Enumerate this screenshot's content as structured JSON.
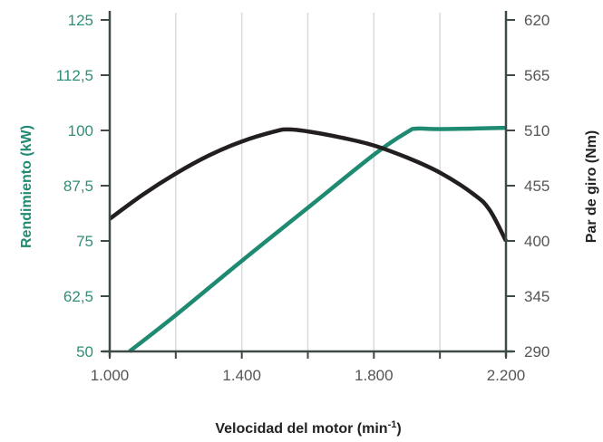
{
  "chart_data": {
    "type": "line",
    "xlabel": "Velocidad del motor (min",
    "xlabel_sup": "-1",
    "xlabel_close": ")",
    "ylabel_left": "Rendimiento (kW)",
    "ylabel_right": "Par de giro (Nm)",
    "xlim": [
      1000,
      2200
    ],
    "ylim_left": [
      50,
      125
    ],
    "ylim_right": [
      290,
      620
    ],
    "x_ticks": [
      1000,
      1400,
      1800,
      2200
    ],
    "x_tick_labels": [
      "1.000",
      "1.400",
      "1.800",
      "2.200"
    ],
    "x_grid": [
      1000,
      1200,
      1400,
      1600,
      1800,
      2000,
      2200
    ],
    "y_left_ticks": [
      50,
      62.5,
      75,
      87.5,
      100,
      112.5,
      125
    ],
    "y_left_tick_labels": [
      "50",
      "62,5",
      "75",
      "87,5",
      "100",
      "112,5",
      "125"
    ],
    "y_right_ticks": [
      290,
      345,
      400,
      455,
      510,
      565,
      620
    ],
    "y_right_tick_labels": [
      "290",
      "345",
      "400",
      "455",
      "510",
      "565",
      "620"
    ],
    "grid": true,
    "colors": {
      "power": "#1e8a72",
      "torque": "#231f20",
      "axis": "#3d4a48",
      "grid": "#d9d9d9"
    },
    "series": [
      {
        "axis": "left",
        "color": "#1e8a72",
        "x": [
          1060,
          1200,
          1400,
          1600,
          1800,
          1900,
          1930,
          2000,
          2200
        ],
        "y": [
          50,
          58.2,
          70.5,
          82.5,
          94.5,
          99.6,
          100.4,
          100.3,
          100.6
        ]
      },
      {
        "axis": "right",
        "color": "#231f20",
        "x": [
          1000,
          1100,
          1200,
          1300,
          1400,
          1500,
          1540,
          1600,
          1700,
          1800,
          1900,
          2000,
          2100,
          2150,
          2200
        ],
        "y": [
          422,
          446,
          467,
          485,
          499,
          509,
          511,
          509,
          503,
          495,
          483,
          468,
          447,
          431,
          400
        ]
      }
    ]
  }
}
